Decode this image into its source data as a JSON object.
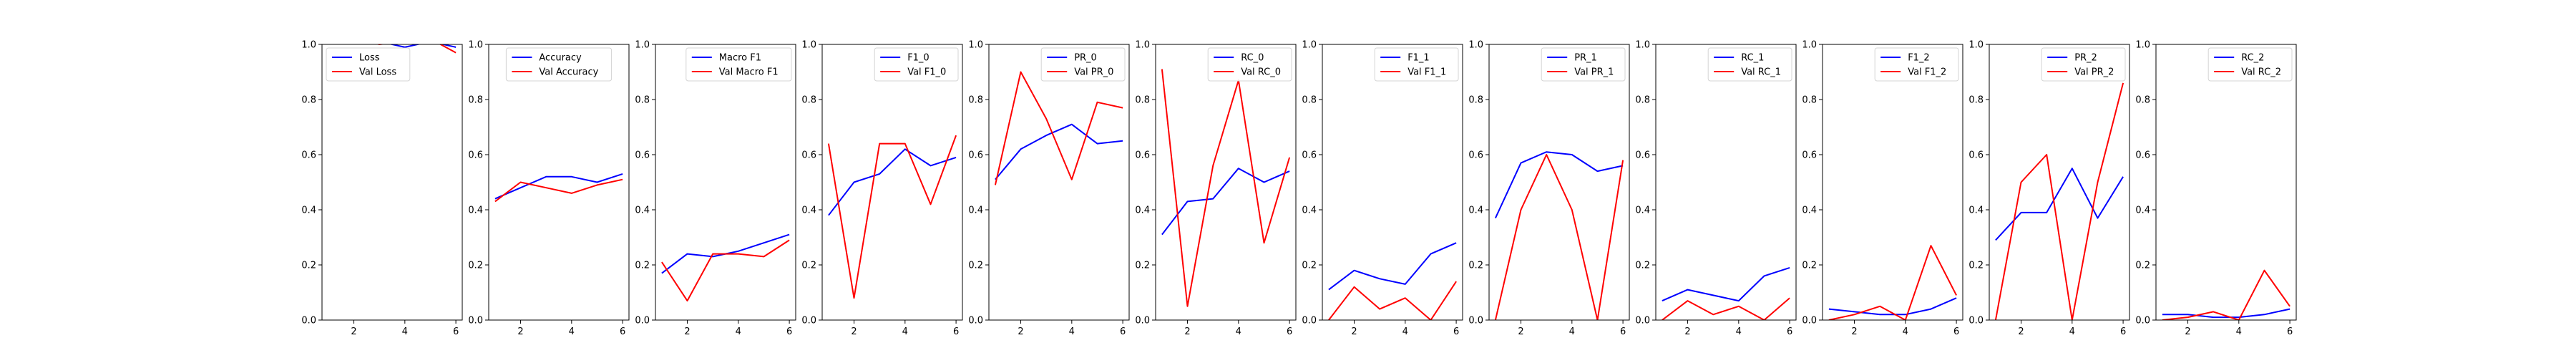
{
  "colors": {
    "train": "#0000ff",
    "val": "#ff0000"
  },
  "chart_data": [
    {
      "type": "line",
      "x": [
        1,
        2,
        3,
        4,
        5,
        6
      ],
      "xticks": [
        2,
        4,
        6
      ],
      "xlim": [
        0.75,
        6.25
      ],
      "ylim": [
        0.0,
        1.0
      ],
      "yticks": [
        "0.0",
        "0.2",
        "0.4",
        "0.6",
        "0.8",
        "1.0"
      ],
      "legend": "upper-left",
      "series": [
        {
          "name": "Loss",
          "values": [
            1.05,
            1.03,
            1.01,
            0.99,
            1.01,
            0.99
          ]
        },
        {
          "name": "Val Loss",
          "values": [
            1.04,
            1.02,
            1.0,
            1.01,
            1.02,
            0.97
          ]
        }
      ]
    },
    {
      "type": "line",
      "x": [
        1,
        2,
        3,
        4,
        5,
        6
      ],
      "xticks": [
        2,
        4,
        6
      ],
      "xlim": [
        0.75,
        6.25
      ],
      "ylim": [
        0.0,
        1.0
      ],
      "yticks": [
        "0.0",
        "0.2",
        "0.4",
        "0.6",
        "0.8",
        "1.0"
      ],
      "legend": "upper-center",
      "series": [
        {
          "name": "Accuracy",
          "values": [
            0.44,
            0.48,
            0.52,
            0.52,
            0.5,
            0.53
          ]
        },
        {
          "name": "Val Accuracy",
          "values": [
            0.43,
            0.5,
            0.48,
            0.46,
            0.49,
            0.51
          ]
        }
      ]
    },
    {
      "type": "line",
      "x": [
        1,
        2,
        3,
        4,
        5,
        6
      ],
      "xticks": [
        2,
        4,
        6
      ],
      "xlim": [
        0.75,
        6.25
      ],
      "ylim": [
        0.0,
        1.0
      ],
      "yticks": [
        "0.0",
        "0.2",
        "0.4",
        "0.6",
        "0.8",
        "1.0"
      ],
      "legend": "upper-right",
      "series": [
        {
          "name": "Macro F1",
          "values": [
            0.17,
            0.24,
            0.23,
            0.25,
            0.28,
            0.31
          ]
        },
        {
          "name": "Val Macro F1",
          "values": [
            0.21,
            0.07,
            0.24,
            0.24,
            0.23,
            0.29
          ]
        }
      ]
    },
    {
      "type": "line",
      "x": [
        1,
        2,
        3,
        4,
        5,
        6
      ],
      "xticks": [
        2,
        4,
        6
      ],
      "xlim": [
        0.75,
        6.25
      ],
      "ylim": [
        0.0,
        1.0
      ],
      "yticks": [
        "0.0",
        "0.2",
        "0.4",
        "0.6",
        "0.8",
        "1.0"
      ],
      "legend": "upper-right",
      "series": [
        {
          "name": "F1_0",
          "values": [
            0.38,
            0.5,
            0.53,
            0.62,
            0.56,
            0.59
          ]
        },
        {
          "name": "Val F1_0",
          "values": [
            0.64,
            0.08,
            0.64,
            0.64,
            0.42,
            0.67
          ]
        }
      ]
    },
    {
      "type": "line",
      "x": [
        1,
        2,
        3,
        4,
        5,
        6
      ],
      "xticks": [
        2,
        4,
        6
      ],
      "xlim": [
        0.75,
        6.25
      ],
      "ylim": [
        0.0,
        1.0
      ],
      "yticks": [
        "0.0",
        "0.2",
        "0.4",
        "0.6",
        "0.8",
        "1.0"
      ],
      "legend": "upper-right",
      "series": [
        {
          "name": "PR_0",
          "values": [
            0.51,
            0.62,
            0.67,
            0.71,
            0.64,
            0.65
          ]
        },
        {
          "name": "Val PR_0",
          "values": [
            0.49,
            0.9,
            0.73,
            0.51,
            0.79,
            0.77
          ]
        }
      ]
    },
    {
      "type": "line",
      "x": [
        1,
        2,
        3,
        4,
        5,
        6
      ],
      "xticks": [
        2,
        4,
        6
      ],
      "xlim": [
        0.75,
        6.25
      ],
      "ylim": [
        0.0,
        1.0
      ],
      "yticks": [
        "0.0",
        "0.2",
        "0.4",
        "0.6",
        "0.8",
        "1.0"
      ],
      "legend": "upper-right",
      "series": [
        {
          "name": "RC_0",
          "values": [
            0.31,
            0.43,
            0.44,
            0.55,
            0.5,
            0.54
          ]
        },
        {
          "name": "Val RC_0",
          "values": [
            0.91,
            0.05,
            0.56,
            0.87,
            0.28,
            0.59
          ]
        }
      ]
    },
    {
      "type": "line",
      "x": [
        1,
        2,
        3,
        4,
        5,
        6
      ],
      "xticks": [
        2,
        4,
        6
      ],
      "xlim": [
        0.75,
        6.25
      ],
      "ylim": [
        0.0,
        1.0
      ],
      "yticks": [
        "0.0",
        "0.2",
        "0.4",
        "0.6",
        "0.8",
        "1.0"
      ],
      "legend": "upper-right",
      "series": [
        {
          "name": "F1_1",
          "values": [
            0.11,
            0.18,
            0.15,
            0.13,
            0.24,
            0.28
          ]
        },
        {
          "name": "Val F1_1",
          "values": [
            0.0,
            0.12,
            0.04,
            0.08,
            0.0,
            0.14
          ]
        }
      ]
    },
    {
      "type": "line",
      "x": [
        1,
        2,
        3,
        4,
        5,
        6
      ],
      "xticks": [
        2,
        4,
        6
      ],
      "xlim": [
        0.75,
        6.25
      ],
      "ylim": [
        0.0,
        1.0
      ],
      "yticks": [
        "0.0",
        "0.2",
        "0.4",
        "0.6",
        "0.8",
        "1.0"
      ],
      "legend": "upper-right",
      "series": [
        {
          "name": "PR_1",
          "values": [
            0.37,
            0.57,
            0.61,
            0.6,
            0.54,
            0.56
          ]
        },
        {
          "name": "Val PR_1",
          "values": [
            0.0,
            0.4,
            0.6,
            0.4,
            0.0,
            0.58
          ]
        }
      ]
    },
    {
      "type": "line",
      "x": [
        1,
        2,
        3,
        4,
        5,
        6
      ],
      "xticks": [
        2,
        4,
        6
      ],
      "xlim": [
        0.75,
        6.25
      ],
      "ylim": [
        0.0,
        1.0
      ],
      "yticks": [
        "0.0",
        "0.2",
        "0.4",
        "0.6",
        "0.8",
        "1.0"
      ],
      "legend": "upper-right",
      "series": [
        {
          "name": "RC_1",
          "values": [
            0.07,
            0.11,
            0.09,
            0.07,
            0.16,
            0.19
          ]
        },
        {
          "name": "Val RC_1",
          "values": [
            0.0,
            0.07,
            0.02,
            0.05,
            0.0,
            0.08
          ]
        }
      ]
    },
    {
      "type": "line",
      "x": [
        1,
        2,
        3,
        4,
        5,
        6
      ],
      "xticks": [
        2,
        4,
        6
      ],
      "xlim": [
        0.75,
        6.25
      ],
      "ylim": [
        0.0,
        1.0
      ],
      "yticks": [
        "0.0",
        "0.2",
        "0.4",
        "0.6",
        "0.8",
        "1.0"
      ],
      "legend": "upper-right",
      "series": [
        {
          "name": "F1_2",
          "values": [
            0.04,
            0.03,
            0.02,
            0.02,
            0.04,
            0.08
          ]
        },
        {
          "name": "Val F1_2",
          "values": [
            0.0,
            0.02,
            0.05,
            0.0,
            0.27,
            0.09
          ]
        }
      ]
    },
    {
      "type": "line",
      "x": [
        1,
        2,
        3,
        4,
        5,
        6
      ],
      "xticks": [
        2,
        4,
        6
      ],
      "xlim": [
        0.75,
        6.25
      ],
      "ylim": [
        0.0,
        1.0
      ],
      "yticks": [
        "0.0",
        "0.2",
        "0.4",
        "0.6",
        "0.8",
        "1.0"
      ],
      "legend": "upper-right",
      "series": [
        {
          "name": "PR_2",
          "values": [
            0.29,
            0.39,
            0.39,
            0.55,
            0.37,
            0.52
          ]
        },
        {
          "name": "Val PR_2",
          "values": [
            0.0,
            0.5,
            0.6,
            0.0,
            0.5,
            0.86
          ]
        }
      ]
    },
    {
      "type": "line",
      "x": [
        1,
        2,
        3,
        4,
        5,
        6
      ],
      "xticks": [
        2,
        4,
        6
      ],
      "xlim": [
        0.75,
        6.25
      ],
      "ylim": [
        0.0,
        1.0
      ],
      "yticks": [
        "0.0",
        "0.2",
        "0.4",
        "0.6",
        "0.8",
        "1.0"
      ],
      "legend": "upper-right",
      "series": [
        {
          "name": "RC_2",
          "values": [
            0.02,
            0.02,
            0.01,
            0.01,
            0.02,
            0.04
          ]
        },
        {
          "name": "Val RC_2",
          "values": [
            0.0,
            0.01,
            0.03,
            0.0,
            0.18,
            0.05
          ]
        }
      ]
    }
  ]
}
